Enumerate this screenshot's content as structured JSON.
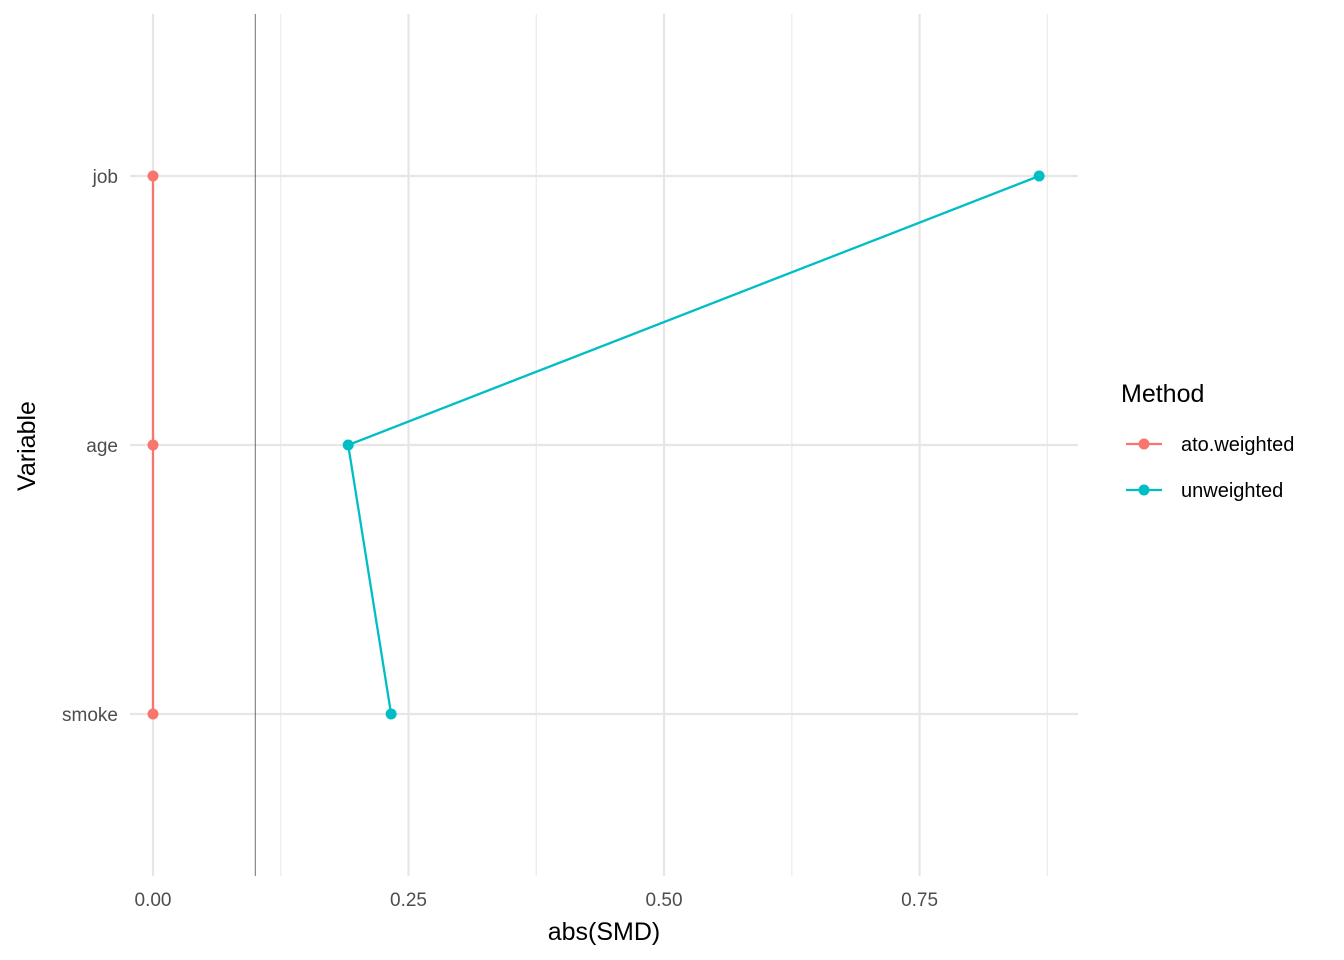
{
  "chart_data": {
    "type": "line",
    "xlabel": "abs(SMD)",
    "ylabel": "Variable",
    "categories": [
      "smoke",
      "age",
      "job"
    ],
    "x_ticks": [
      "0.00",
      "0.25",
      "0.50",
      "0.75"
    ],
    "x_tick_values": [
      0,
      0.25,
      0.5,
      0.75
    ],
    "xlim": [
      -0.0225,
      0.905
    ],
    "threshold_line": 0.1,
    "grid": true,
    "legend": {
      "title": "Method",
      "placement": "right"
    },
    "series": [
      {
        "name": "ato.weighted",
        "color": "#F8766D",
        "points": [
          {
            "variable": "job",
            "value": 0.0
          },
          {
            "variable": "age",
            "value": 0.0
          },
          {
            "variable": "smoke",
            "value": 0.0
          }
        ]
      },
      {
        "name": "unweighted",
        "color": "#00BFC4",
        "points": [
          {
            "variable": "job",
            "value": 0.867
          },
          {
            "variable": "age",
            "value": 0.191
          },
          {
            "variable": "smoke",
            "value": 0.233
          }
        ]
      }
    ]
  }
}
